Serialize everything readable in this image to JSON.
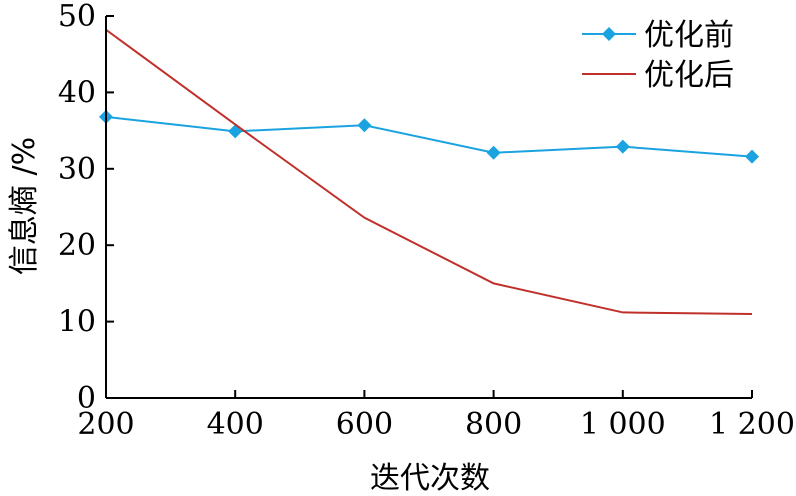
{
  "chart_data": {
    "type": "line",
    "x": [
      200,
      400,
      600,
      800,
      1000,
      1200
    ],
    "x_tick_labels": [
      "200",
      "400",
      "600",
      "800",
      "1 000",
      "1 200"
    ],
    "xlabel": "迭代次数",
    "ylabel": "信息熵 /%",
    "xlim": [
      200,
      1200
    ],
    "ylim": [
      0,
      50
    ],
    "y_ticks": [
      0,
      10,
      20,
      30,
      40,
      50
    ],
    "grid": false,
    "legend_position": "top-right",
    "series": [
      {
        "name": "优化前",
        "color": "#1aa3e0",
        "marker": "diamond",
        "values": [
          36.8,
          34.9,
          35.7,
          32.1,
          32.9,
          31.6
        ]
      },
      {
        "name": "优化后",
        "color": "#c0302a",
        "marker": "none",
        "values": [
          48.2,
          35.8,
          23.6,
          15.0,
          11.2,
          11.0
        ]
      }
    ]
  }
}
